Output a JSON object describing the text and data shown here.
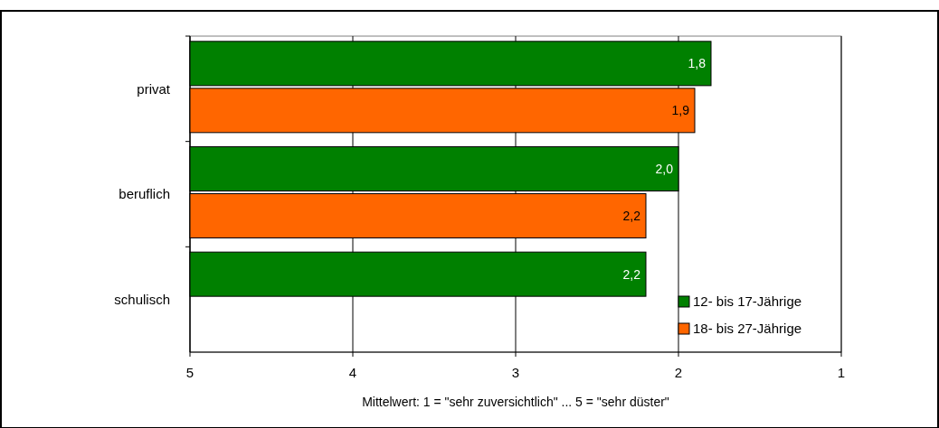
{
  "chart_data": {
    "type": "bar",
    "orientation": "horizontal",
    "xlabel": "Mittelwert: 1 = \"sehr zuversichtlich\" ... 5 = \"sehr düster\"",
    "categories": [
      "privat",
      "beruflich",
      "schulisch"
    ],
    "series": [
      {
        "name": "12- bis 17-Jährige",
        "color": "#008000",
        "base": [
          5,
          5,
          5
        ],
        "values": [
          -3.2,
          -3.0,
          -2.8
        ],
        "value_labels": [
          "1,8",
          "2,0",
          "2,2"
        ]
      },
      {
        "name": "18- bis 27-Jährige",
        "color": "#ff6600",
        "base": [
          5,
          5,
          null
        ],
        "values": [
          -3.1,
          -2.8,
          null
        ],
        "value_labels": [
          "1,9",
          "2,2",
          null
        ]
      }
    ],
    "xlim": [
      5,
      1
    ],
    "xticks": [
      5,
      4,
      3,
      2,
      1
    ],
    "grid": "x",
    "legend": "bottom right"
  }
}
